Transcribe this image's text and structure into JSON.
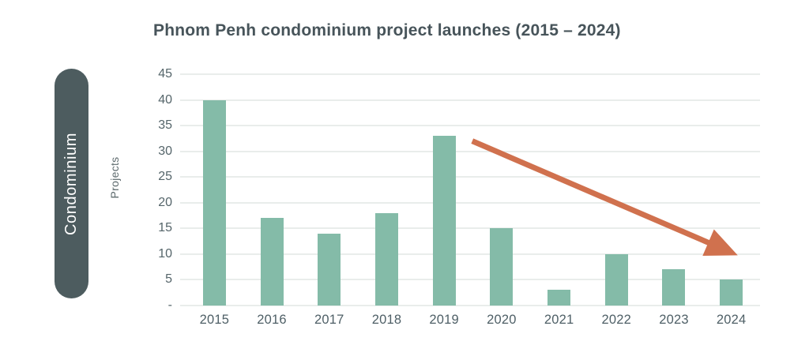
{
  "title": "Phnom Penh condominium project launches (2015 – 2024)",
  "category_pill": {
    "label": "Condominium",
    "bg": "#4d5c5f",
    "text_color": "#ffffff"
  },
  "chart_data": {
    "type": "bar",
    "title": "Phnom Penh condominium project launches (2015 – 2024)",
    "categories": [
      "2015",
      "2016",
      "2017",
      "2018",
      "2019",
      "2020",
      "2021",
      "2022",
      "2023",
      "2024"
    ],
    "values": [
      40,
      17,
      14,
      18,
      33,
      15,
      3,
      10,
      7,
      5
    ],
    "xlabel": "",
    "ylabel": "Projects",
    "ylim": [
      0,
      45
    ],
    "yticks": [
      {
        "value": 45,
        "label": "45"
      },
      {
        "value": 40,
        "label": "40"
      },
      {
        "value": 35,
        "label": "35"
      },
      {
        "value": 30,
        "label": "30"
      },
      {
        "value": 25,
        "label": "25"
      },
      {
        "value": 20,
        "label": "20"
      },
      {
        "value": 15,
        "label": "15"
      },
      {
        "value": 10,
        "label": "10"
      },
      {
        "value": 5,
        "label": "5"
      },
      {
        "value": 0,
        "label": "-"
      }
    ],
    "grid": true,
    "legend_position": "none",
    "bar_color": "#84bba8",
    "grid_color": "#e9edeb",
    "trend_arrow": {
      "color": "#d0714e",
      "from": {
        "frac_x": 0.499,
        "value": 32
      },
      "to": {
        "frac_x": 0.94,
        "value": 10.8
      }
    }
  },
  "colors": {
    "title": "#47545a",
    "tick_label": "#55656a",
    "axis_label": "#5e6b6e",
    "background": "#ffffff"
  }
}
